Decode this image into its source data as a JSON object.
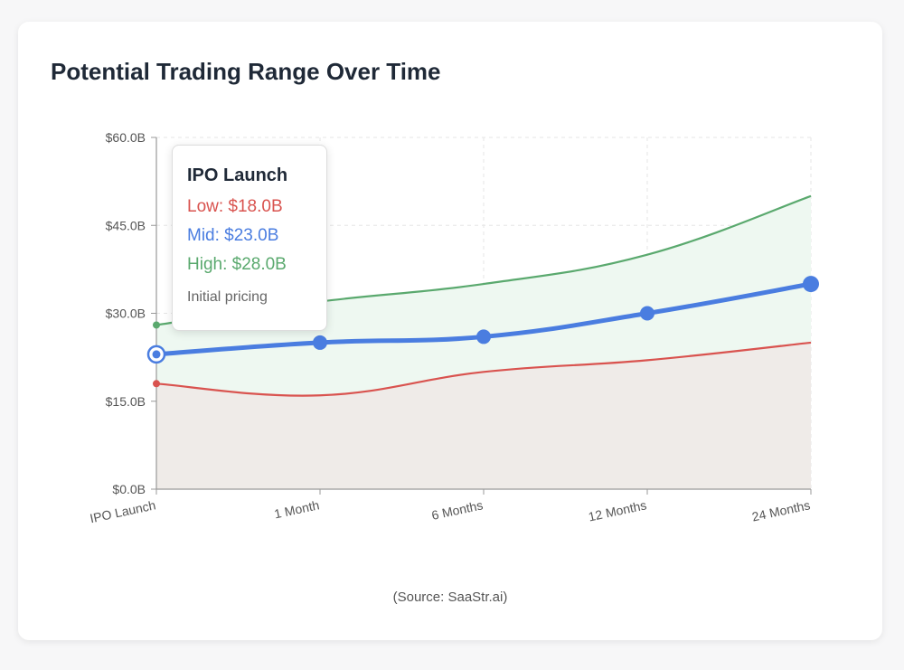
{
  "card": {
    "title": "Potential Trading Range Over Time",
    "source": "(Source: SaaStr.ai)"
  },
  "colors": {
    "low": "#d9534f",
    "mid": "#4a7de0",
    "high": "#5aa96e",
    "grid": "#e6e6e6",
    "axis": "#999999"
  },
  "tooltip": {
    "title": "IPO Launch",
    "low": "Low: $18.0B",
    "mid": "Mid: $23.0B",
    "high": "High: $28.0B",
    "note": "Initial pricing"
  },
  "chart_data": {
    "type": "line",
    "title": "Potential Trading Range Over Time",
    "categories": [
      "IPO Launch",
      "1 Month",
      "6 Months",
      "12 Months",
      "24 Months"
    ],
    "series": [
      {
        "name": "Low",
        "values": [
          18,
          16,
          20,
          22,
          25
        ]
      },
      {
        "name": "Mid",
        "values": [
          23,
          25,
          26,
          30,
          35
        ]
      },
      {
        "name": "High",
        "values": [
          28,
          32,
          35,
          40,
          50
        ]
      }
    ],
    "ylim": [
      0,
      60
    ],
    "yticks": [
      0,
      15,
      30,
      45,
      60
    ],
    "ytick_labels": [
      "$0.0B",
      "$15.0B",
      "$30.0B",
      "$45.0B",
      "$60.0B"
    ],
    "grid": true,
    "active_point": "IPO Launch"
  }
}
